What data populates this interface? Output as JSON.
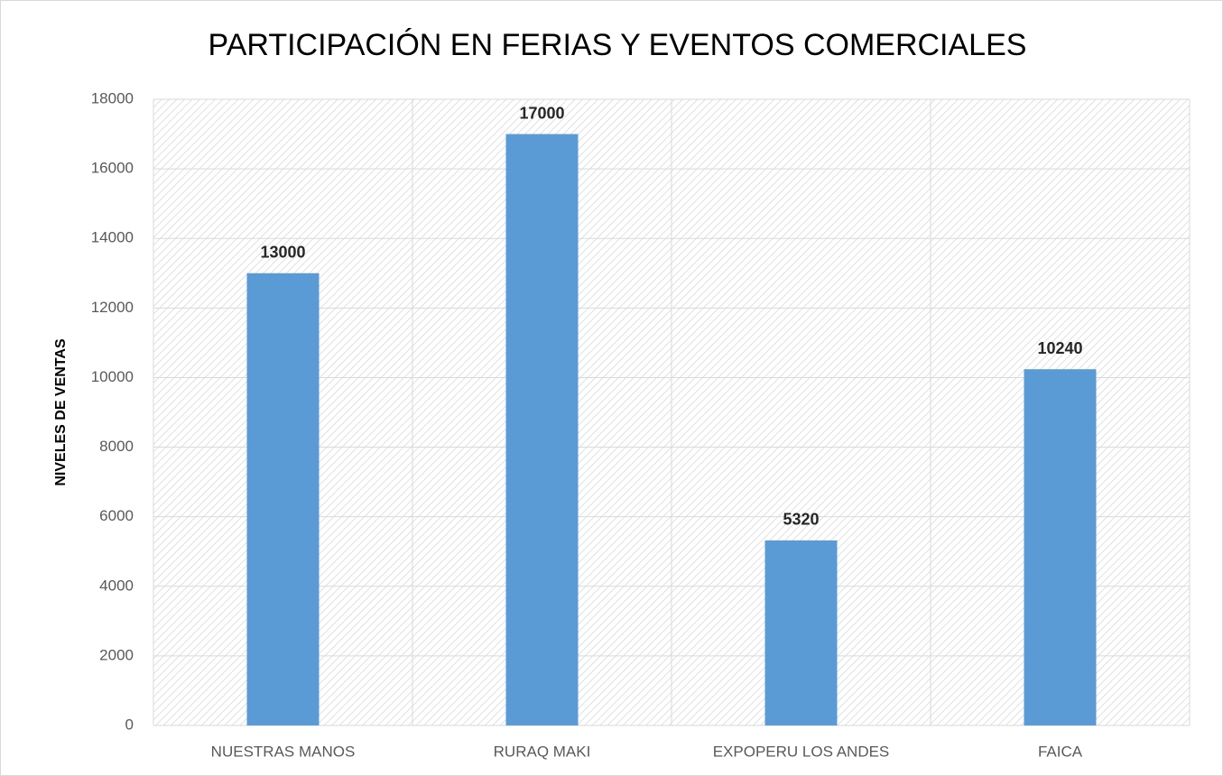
{
  "chart_data": {
    "type": "bar",
    "title": "PARTICIPACIÓN EN FERIAS Y EVENTOS COMERCIALES",
    "y_label": "NIVELES DE VENTAS",
    "categories": [
      "NUESTRAS MANOS",
      "RURAQ MAKI",
      "EXPOPERU LOS ANDES",
      "FAICA"
    ],
    "values": [
      13000,
      17000,
      5320,
      10240
    ],
    "color": "#5b9bd5",
    "ylim": [
      0,
      18000
    ],
    "yticks": [
      0,
      2000,
      4000,
      6000,
      8000,
      10000,
      12000,
      14000,
      16000,
      18000
    ],
    "grid": true
  }
}
